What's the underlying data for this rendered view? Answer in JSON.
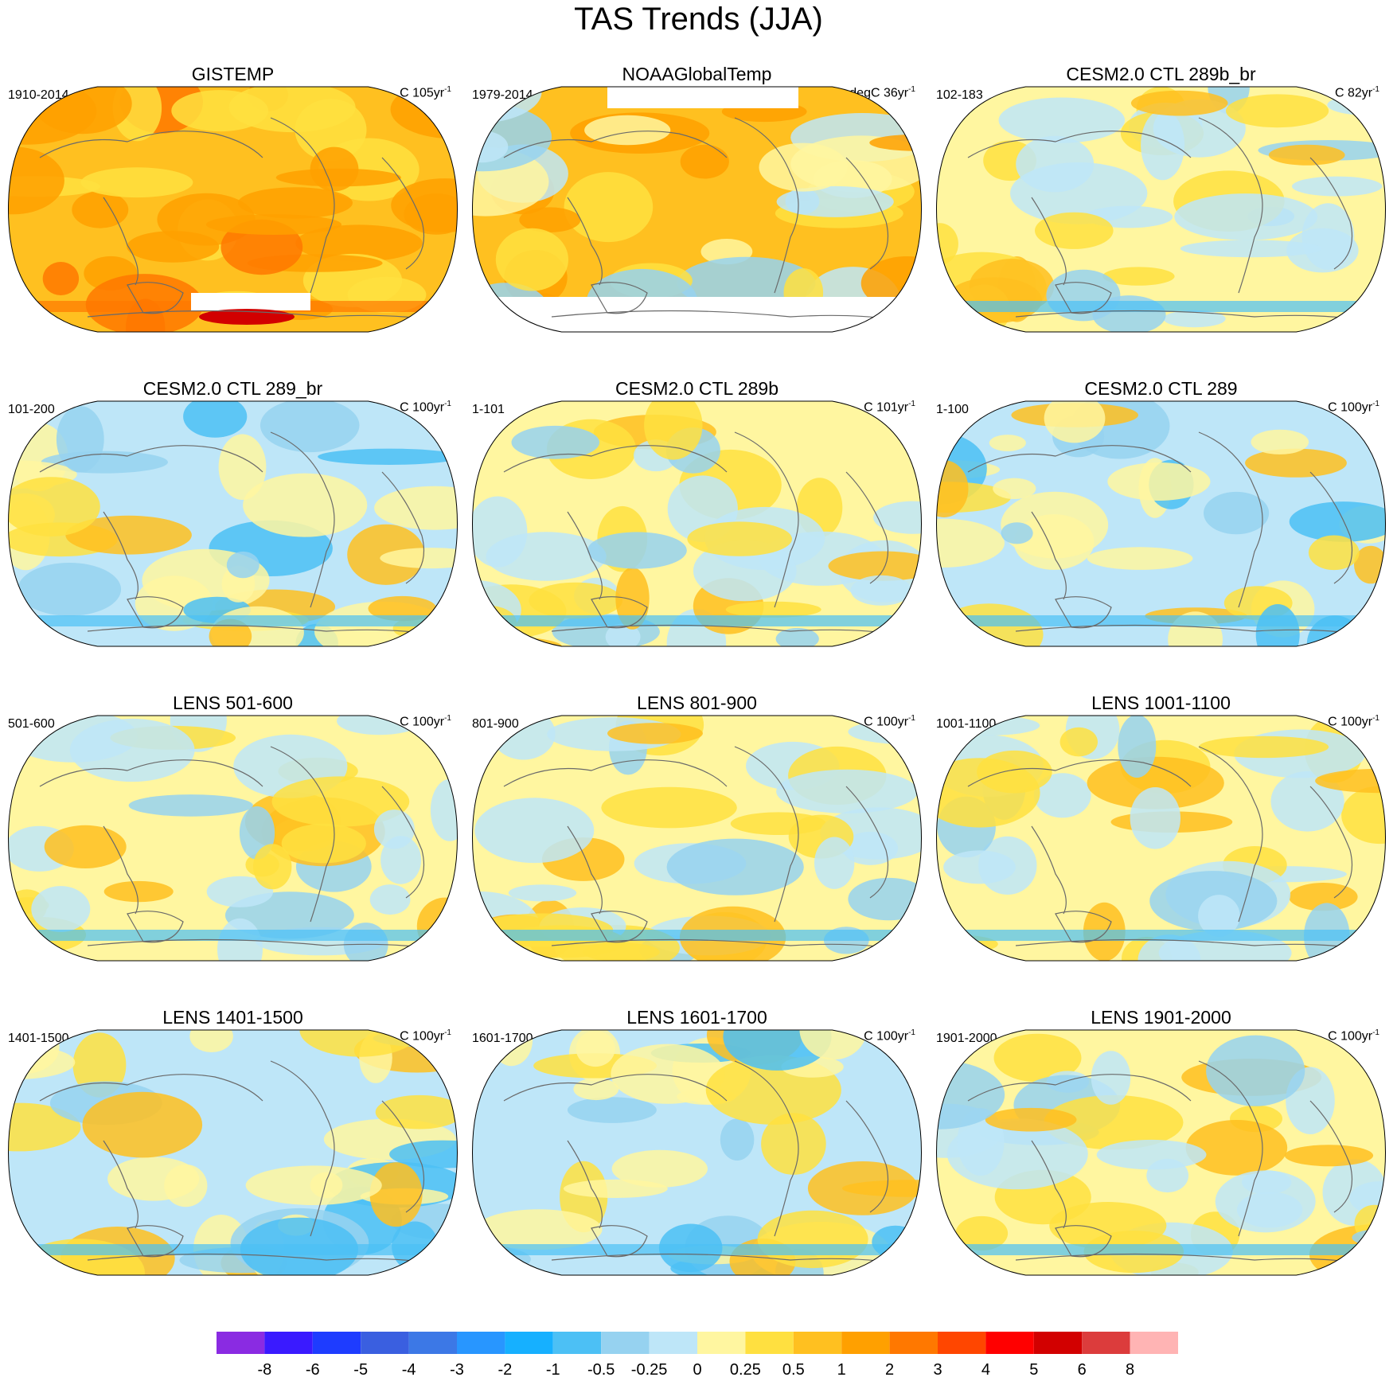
{
  "title": "TAS Trends (JJA)",
  "panels": [
    {
      "title": "GISTEMP",
      "left": "1910-2014",
      "unit": "C 105yr",
      "sup": "-1",
      "theme": "warm",
      "gaps": "gis"
    },
    {
      "title": "NOAAGlobalTemp",
      "left": "1979-2014",
      "unit": "degC 36yr",
      "sup": "-1",
      "theme": "warm2",
      "gaps": "noaa"
    },
    {
      "title": "CESM2.0 CTL 289b_br",
      "left": "102-183",
      "unit": "C 82yr",
      "sup": "-1",
      "theme": "mixed",
      "gaps": ""
    },
    {
      "title": "CESM2.0 CTL 289_br",
      "left": "101-200",
      "unit": "C 100yr",
      "sup": "-1",
      "theme": "cool",
      "gaps": ""
    },
    {
      "title": "CESM2.0 CTL 289b",
      "left": "1-101",
      "unit": "C 101yr",
      "sup": "-1",
      "theme": "mixed",
      "gaps": ""
    },
    {
      "title": "CESM2.0 CTL 289",
      "left": "1-100",
      "unit": "C 100yr",
      "sup": "-1",
      "theme": "cool",
      "gaps": ""
    },
    {
      "title": "LENS 501-600",
      "left": "501-600",
      "unit": "C 100yr",
      "sup": "-1",
      "theme": "mixed",
      "gaps": ""
    },
    {
      "title": "LENS 801-900",
      "left": "801-900",
      "unit": "C 100yr",
      "sup": "-1",
      "theme": "mixed",
      "gaps": ""
    },
    {
      "title": "LENS 1001-1100",
      "left": "1001-1100",
      "unit": "C 100yr",
      "sup": "-1",
      "theme": "mixed",
      "gaps": ""
    },
    {
      "title": "LENS 1401-1500",
      "left": "1401-1500",
      "unit": "C 100yr",
      "sup": "-1",
      "theme": "cool",
      "gaps": ""
    },
    {
      "title": "LENS 1601-1700",
      "left": "1601-1700",
      "unit": "C 100yr",
      "sup": "-1",
      "theme": "cool",
      "gaps": ""
    },
    {
      "title": "LENS 1901-2000",
      "left": "1901-2000",
      "unit": "C 100yr",
      "sup": "-1",
      "theme": "mixed",
      "gaps": ""
    }
  ],
  "colorbar": {
    "colors": [
      "#8a2be2",
      "#3a1aff",
      "#1e3cff",
      "#3a5fe0",
      "#3c78e6",
      "#2896ff",
      "#16b0ff",
      "#4cc0f5",
      "#96d2f0",
      "#bee6f8",
      "#fff6a0",
      "#ffe040",
      "#ffc020",
      "#ffa000",
      "#ff7800",
      "#ff4600",
      "#ff0000",
      "#d20000",
      "#dc3c3c",
      "#ffb4b4"
    ],
    "labels": [
      "-8",
      "-6",
      "-5",
      "-4",
      "-3",
      "-2",
      "-1",
      "-0.5",
      "-0.25",
      "0",
      "0.25",
      "0.5",
      "1",
      "2",
      "3",
      "4",
      "5",
      "6",
      "8"
    ]
  }
}
